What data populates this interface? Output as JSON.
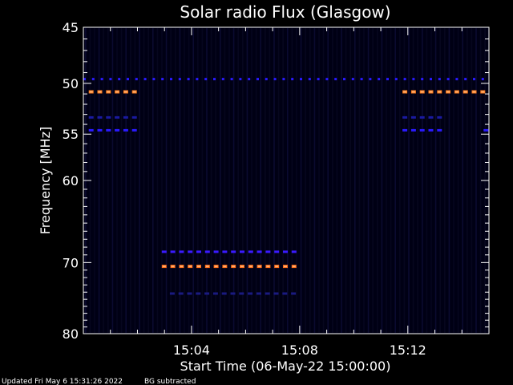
{
  "chart_data": {
    "type": "heatmap",
    "title": "Solar radio Flux (Glasgow)",
    "xlabel": "Start Time (06-May-22 15:00:00)",
    "ylabel": "Frequency [MHz]",
    "x_ticks": [
      "15:04",
      "15:08",
      "15:12"
    ],
    "x_tick_minutes": [
      4,
      8,
      12
    ],
    "xlim_minutes": [
      0,
      15
    ],
    "y_ticks": [
      45,
      50,
      55,
      60,
      70,
      80
    ],
    "ylim": [
      45,
      80
    ],
    "y_scale": "log",
    "background": "#000014",
    "bands": [
      {
        "freq": 49.6,
        "start_min": 0.0,
        "end_min": 15.0,
        "color": "#2a1aff",
        "pattern": "sparse-dashes",
        "intensity": "medium"
      },
      {
        "freq": 50.8,
        "start_min": 0.2,
        "end_min": 2.1,
        "color": "#ff7a1a",
        "pattern": "dashes",
        "intensity": "high"
      },
      {
        "freq": 50.8,
        "start_min": 11.8,
        "end_min": 15.0,
        "color": "#ff7a1a",
        "pattern": "dashes",
        "intensity": "high"
      },
      {
        "freq": 53.3,
        "start_min": 0.2,
        "end_min": 2.1,
        "color": "#1a1aa0",
        "pattern": "dashes",
        "intensity": "low"
      },
      {
        "freq": 53.3,
        "start_min": 11.8,
        "end_min": 13.5,
        "color": "#1a1aa0",
        "pattern": "dashes",
        "intensity": "low"
      },
      {
        "freq": 54.6,
        "start_min": 0.2,
        "end_min": 2.1,
        "color": "#2a1aff",
        "pattern": "dashes",
        "intensity": "medium"
      },
      {
        "freq": 54.6,
        "start_min": 11.8,
        "end_min": 13.5,
        "color": "#2a1aff",
        "pattern": "dashes",
        "intensity": "medium"
      },
      {
        "freq": 54.6,
        "start_min": 14.8,
        "end_min": 15.0,
        "color": "#2a1aff",
        "pattern": "dashes",
        "intensity": "medium"
      },
      {
        "freq": 68.6,
        "start_min": 2.9,
        "end_min": 8.0,
        "color": "#3a1aff",
        "pattern": "dashes",
        "intensity": "medium"
      },
      {
        "freq": 70.5,
        "start_min": 2.9,
        "end_min": 8.0,
        "color": "#ff6a14",
        "pattern": "dashes",
        "intensity": "high"
      },
      {
        "freq": 74.2,
        "start_min": 3.2,
        "end_min": 8.0,
        "color": "#1a1a80",
        "pattern": "dashes",
        "intensity": "low"
      }
    ]
  },
  "footer": {
    "updated": "Updated Fri May  6 15:31:26 2022",
    "note": "BG subtracted"
  }
}
